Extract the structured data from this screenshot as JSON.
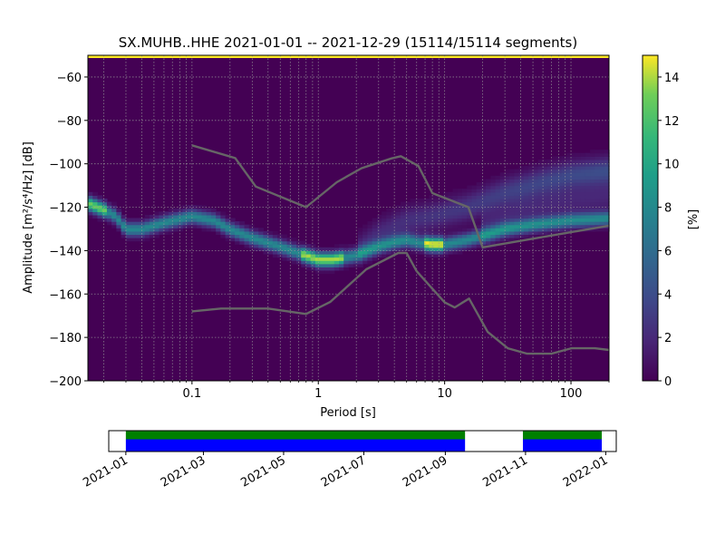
{
  "chart_data": [
    {
      "type": "heatmap",
      "title": "SX.MUHB..HHE   2021-01-01 -- 2021-12-29  (15114/15114 segments)",
      "xlabel": "Period [s]",
      "ylabel": "Amplitude [m²/s⁴/Hz] [dB]",
      "x_scale": "log",
      "xlim": [
        0.015,
        200
      ],
      "ylim": [
        -200,
        -50
      ],
      "grid": true,
      "x_ticks": [
        {
          "value": 0.1,
          "label": "0.1"
        },
        {
          "value": 1,
          "label": "1"
        },
        {
          "value": 10,
          "label": "10"
        },
        {
          "value": 100,
          "label": "100"
        }
      ],
      "y_ticks": [
        -200,
        -180,
        -160,
        -140,
        -120,
        -100,
        -80,
        -60
      ],
      "y_tick_labels": [
        "−200",
        "−180",
        "−160",
        "−140",
        "−120",
        "−100",
        "−80",
        "−60"
      ],
      "colorbar": {
        "label": "[%]",
        "range": [
          0,
          15
        ],
        "ticks": [
          0,
          2,
          4,
          6,
          8,
          10,
          12,
          14
        ],
        "colormap": "viridis"
      },
      "density_ridge": {
        "x": [
          0.015,
          0.02,
          0.025,
          0.03,
          0.04,
          0.06,
          0.1,
          0.15,
          0.2,
          0.3,
          0.5,
          0.7,
          1,
          1.3,
          2,
          3,
          4,
          5,
          6,
          8,
          10,
          15,
          20,
          30,
          50,
          100,
          200
        ],
        "y": [
          -118,
          -121,
          -124,
          -130,
          -130,
          -127,
          -124,
          -126,
          -130,
          -134,
          -138,
          -141,
          -144,
          -144,
          -142,
          -138,
          -136,
          -135,
          -136,
          -137,
          -137,
          -135,
          -133,
          -130,
          -128,
          -126,
          -125
        ]
      },
      "upper_branch": {
        "x": [
          2,
          3,
          5,
          8,
          15,
          30,
          60,
          100,
          200
        ],
        "y": [
          -140,
          -132,
          -126,
          -124,
          -120,
          -113,
          -108,
          -105,
          -103
        ]
      },
      "lower_branch": {
        "x": [
          20,
          40,
          80,
          150,
          200
        ],
        "y": [
          -130,
          -122,
          -118,
          -116,
          -115
        ]
      },
      "series": [
        {
          "name": "",
          "color": "#666666",
          "x": [
            0.1,
            0.22,
            0.32,
            0.8,
            1.4,
            2.2,
            3.8,
            4.5,
            6.2,
            8.0,
            15.4,
            20.0,
            200
          ],
          "y": [
            -91.5,
            -97.4,
            -110.5,
            -120.0,
            -108.5,
            -102.0,
            -97.5,
            -96.5,
            -101.0,
            -113.5,
            -120.0,
            -138.5,
            -128.5
          ]
        },
        {
          "name": "",
          "color": "#666666",
          "x": [
            0.1,
            0.17,
            0.4,
            0.8,
            1.24,
            2.4,
            4.3,
            5.0,
            6.0,
            10.0,
            12.0,
            15.6,
            21.9,
            31.6,
            45.0,
            70.0,
            101.0,
            154.0,
            200
          ],
          "y": [
            -168.0,
            -166.7,
            -166.7,
            -169.2,
            -163.7,
            -148.6,
            -141.1,
            -141.1,
            -149.5,
            -163.8,
            -166.2,
            -162.1,
            -177.5,
            -185.0,
            -187.5,
            -187.5,
            -185.0,
            -185.0,
            -185.8
          ]
        }
      ]
    },
    {
      "type": "bar",
      "x_ticks": [
        "2021-01",
        "2021-03",
        "2021-05",
        "2021-07",
        "2021-09",
        "2021-11",
        "2022-01"
      ],
      "xlim": [
        "2020-12-19",
        "2022-01-09"
      ],
      "segments": [
        {
          "start": "2021-01-01",
          "end": "2021-09-16",
          "color_top": "#008000",
          "color_bottom": "#0000ff"
        },
        {
          "start": "2021-10-30",
          "end": "2021-12-29",
          "color_top": "#008000",
          "color_bottom": "#0000ff"
        }
      ]
    }
  ]
}
